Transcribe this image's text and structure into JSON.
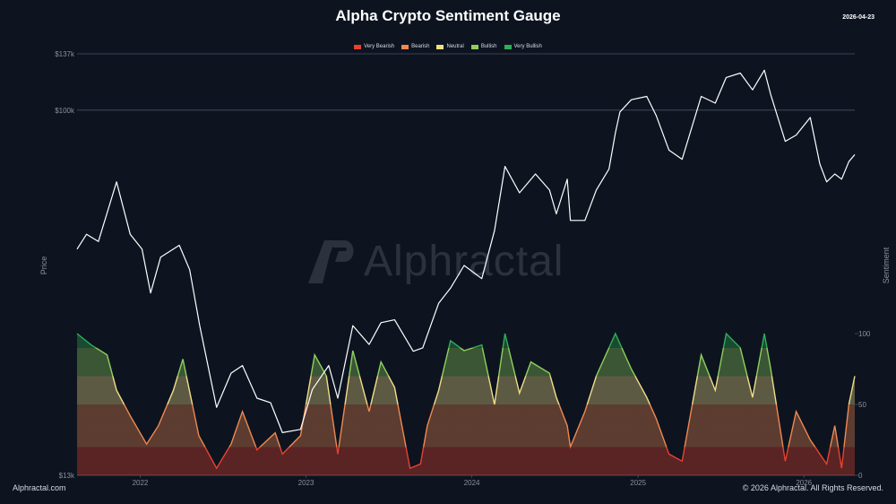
{
  "header": {
    "title": "Alpha Crypto Sentiment Gauge",
    "date": "2026-04-23"
  },
  "footer": {
    "left": "Alphractal.com",
    "right": "© 2026 Alphractal. All Rights Reserved."
  },
  "watermark": {
    "text": "Alphractal",
    "icon": "alphractal-logo-icon"
  },
  "colors": {
    "background": "#0d1420",
    "price_line": "#ffffff",
    "very_bearish": "#e8412f",
    "bearish": "#f0884f",
    "neutral": "#f2dd86",
    "bullish": "#8fd05c",
    "very_bullish": "#2fae55"
  },
  "chart_data": {
    "type": "line",
    "xlabel": "",
    "ylabel": "Price",
    "y2label": "Sentiment",
    "x_range": [
      "2021-08-15",
      "2026-04-23"
    ],
    "x_ticks": [
      "2022",
      "2023",
      "2024",
      "2025",
      "2026"
    ],
    "y_scale": "log",
    "ylim": [
      13000,
      137000
    ],
    "y_ticks": [
      "$13k",
      "$100k",
      "$137k"
    ],
    "y2lim": [
      0,
      100
    ],
    "y2_ticks": [
      "0",
      "50",
      "100"
    ],
    "legend": {
      "placement": "top-center",
      "entries": [
        "Very Bearish",
        "Bearish",
        "Neutral",
        "Bullish",
        "Very Bullish"
      ]
    },
    "sentiment_bands": [
      {
        "label": "Very Bearish",
        "from": 0,
        "to": 20
      },
      {
        "label": "Bearish",
        "from": 20,
        "to": 50
      },
      {
        "label": "Neutral",
        "from": 50,
        "to": 70
      },
      {
        "label": "Bullish",
        "from": 70,
        "to": 90
      },
      {
        "label": "Very Bullish",
        "from": 90,
        "to": 100
      }
    ],
    "series": [
      {
        "name": "Price",
        "x": [
          "2021-08-15",
          "2021-09-05",
          "2021-10-01",
          "2021-11-10",
          "2021-12-10",
          "2022-01-05",
          "2022-01-24",
          "2022-02-15",
          "2022-03-28",
          "2022-04-20",
          "2022-05-12",
          "2022-06-18",
          "2022-07-20",
          "2022-08-14",
          "2022-09-15",
          "2022-10-15",
          "2022-11-10",
          "2022-12-20",
          "2023-01-15",
          "2023-02-20",
          "2023-03-12",
          "2023-04-14",
          "2023-05-20",
          "2023-06-15",
          "2023-07-15",
          "2023-08-25",
          "2023-09-15",
          "2023-10-20",
          "2023-11-15",
          "2023-12-15",
          "2024-01-23",
          "2024-02-20",
          "2024-03-14",
          "2024-04-15",
          "2024-05-20",
          "2024-06-20",
          "2024-07-05",
          "2024-07-29",
          "2024-08-05",
          "2024-09-06",
          "2024-10-01",
          "2024-10-29",
          "2024-11-12",
          "2024-11-22",
          "2024-12-17",
          "2025-01-20",
          "2025-02-10",
          "2025-03-10",
          "2025-04-08",
          "2025-05-20",
          "2025-06-20",
          "2025-07-14",
          "2025-08-14",
          "2025-09-10",
          "2025-10-06",
          "2025-10-20",
          "2025-11-21",
          "2025-12-15",
          "2026-01-15",
          "2026-02-05",
          "2026-02-20",
          "2026-03-10",
          "2026-03-25",
          "2026-04-10",
          "2026-04-23"
        ],
        "y": [
          46000,
          50000,
          48000,
          67000,
          50000,
          46000,
          36000,
          44000,
          47000,
          41000,
          30000,
          19000,
          23000,
          24000,
          20000,
          19500,
          16500,
          16800,
          21000,
          24000,
          20000,
          30000,
          27000,
          30500,
          31000,
          26000,
          26500,
          34000,
          37000,
          42000,
          39000,
          51000,
          73000,
          63000,
          70000,
          64000,
          56000,
          68000,
          54000,
          54000,
          64000,
          72000,
          88000,
          99000,
          106000,
          108000,
          97000,
          80000,
          76000,
          108000,
          104000,
          120000,
          123000,
          112000,
          125000,
          109000,
          84000,
          87000,
          96000,
          74000,
          67000,
          70000,
          68000,
          75000,
          78000
        ]
      },
      {
        "name": "Sentiment",
        "x": [
          "2021-08-15",
          "2021-09-15",
          "2021-10-20",
          "2021-11-10",
          "2021-12-10",
          "2022-01-15",
          "2022-02-10",
          "2022-03-15",
          "2022-04-05",
          "2022-05-10",
          "2022-06-18",
          "2022-07-20",
          "2022-08-14",
          "2022-09-15",
          "2022-10-25",
          "2022-11-10",
          "2022-12-20",
          "2023-01-20",
          "2023-02-15",
          "2023-03-12",
          "2023-04-14",
          "2023-05-20",
          "2023-06-15",
          "2023-07-15",
          "2023-08-18",
          "2023-09-10",
          "2023-09-25",
          "2023-10-20",
          "2023-11-15",
          "2023-12-15",
          "2024-01-23",
          "2024-02-20",
          "2024-03-14",
          "2024-04-15",
          "2024-05-10",
          "2024-06-20",
          "2024-07-05",
          "2024-07-29",
          "2024-08-05",
          "2024-09-06",
          "2024-10-01",
          "2024-11-12",
          "2024-12-17",
          "2025-01-20",
          "2025-02-10",
          "2025-03-10",
          "2025-04-08",
          "2025-05-20",
          "2025-06-20",
          "2025-07-14",
          "2025-08-14",
          "2025-09-10",
          "2025-10-06",
          "2025-10-20",
          "2025-11-21",
          "2025-12-15",
          "2026-01-15",
          "2026-02-05",
          "2026-02-20",
          "2026-03-10",
          "2026-03-25",
          "2026-04-10",
          "2026-04-23"
        ],
        "y": [
          100,
          92,
          85,
          60,
          42,
          22,
          35,
          60,
          82,
          28,
          5,
          22,
          45,
          18,
          30,
          15,
          28,
          85,
          70,
          15,
          88,
          45,
          80,
          62,
          5,
          8,
          35,
          60,
          95,
          88,
          92,
          50,
          100,
          58,
          80,
          72,
          55,
          35,
          20,
          45,
          70,
          100,
          75,
          55,
          40,
          15,
          10,
          85,
          60,
          100,
          90,
          55,
          100,
          75,
          10,
          45,
          25,
          15,
          8,
          35,
          5,
          50,
          70
        ]
      }
    ]
  }
}
